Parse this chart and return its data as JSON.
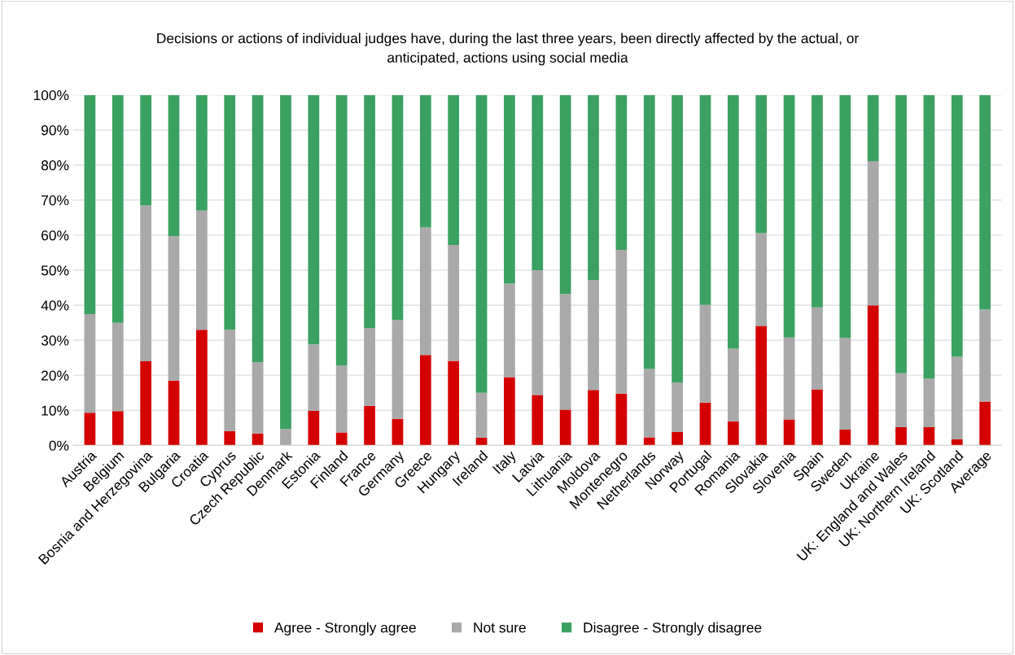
{
  "chart_data": {
    "type": "bar",
    "stacked": true,
    "title": "Decisions or actions of individual judges have, during the last three years, been directly affected by the actual, or\nanticipated, actions using social media",
    "categories": [
      "Austria",
      "Belgium",
      "Bosnia and Herzegovina",
      "Bulgaria",
      "Croatia",
      "Cyprus",
      "Czech Republic",
      "Denmark",
      "Estonia",
      "Finland",
      "France",
      "Germany",
      "Greece",
      "Hungary",
      "Ireland",
      "Italy",
      "Latvia",
      "Lithuania",
      "Moldova",
      "Montenegro",
      "Netherlands",
      "Norway",
      "Portugal",
      "Romania",
      "Slovakia",
      "Slovenia",
      "Spain",
      "Sweden",
      "Ukraine",
      "UK: England and Wales",
      "UK: Northern Ireland",
      "UK: Scotland",
      "Average"
    ],
    "series": [
      {
        "name": "Agree - Strongly agree",
        "color": "#d40000",
        "values": [
          9.3,
          9.8,
          24,
          18.5,
          33,
          4.1,
          3.4,
          0,
          9.9,
          3.7,
          11.3,
          7.6,
          25.8,
          24.1,
          2.2,
          19.5,
          14.4,
          10.2,
          15.8,
          14.8,
          2.3,
          3.8,
          12.2,
          6.9,
          34.1,
          7.4,
          16,
          4.5,
          40,
          5.2,
          5.2,
          1.8,
          12.5
        ]
      },
      {
        "name": "Not sure",
        "color": "#a9a9a9",
        "values": [
          28.2,
          25.2,
          44.5,
          41.2,
          34,
          28.9,
          20.3,
          4.7,
          18.9,
          19.1,
          22.2,
          28.2,
          36.4,
          33.1,
          12.8,
          26.7,
          35.6,
          33,
          31.4,
          41,
          19.5,
          14.2,
          27.9,
          20.7,
          26.5,
          23.4,
          23.4,
          26.1,
          41.1,
          15.4,
          13.8,
          23.5,
          26.3
        ]
      },
      {
        "name": "Disagree - Strongly disagree",
        "color": "#3ba160",
        "values": [
          62.5,
          65,
          31.5,
          40.3,
          33,
          67,
          76.3,
          95.3,
          71.2,
          77.2,
          66.5,
          64.2,
          37.8,
          42.8,
          85,
          53.8,
          50,
          56.8,
          52.8,
          44.2,
          78.2,
          82,
          59.9,
          72.4,
          39.4,
          69.2,
          60.6,
          69.4,
          18.9,
          79.4,
          81,
          74.7,
          61.2
        ]
      }
    ],
    "ylim": [
      0,
      100
    ],
    "yticks": [
      {
        "value": 0,
        "label": "0%"
      },
      {
        "value": 10,
        "label": "10%"
      },
      {
        "value": 20,
        "label": "20%"
      },
      {
        "value": 30,
        "label": "30%"
      },
      {
        "value": 40,
        "label": "40%"
      },
      {
        "value": 50,
        "label": "50%"
      },
      {
        "value": 60,
        "label": "60%"
      },
      {
        "value": 70,
        "label": "70%"
      },
      {
        "value": 80,
        "label": "80%"
      },
      {
        "value": 90,
        "label": "90%"
      },
      {
        "value": 100,
        "label": "100%"
      }
    ],
    "grid": "y",
    "legend": "bottom"
  }
}
